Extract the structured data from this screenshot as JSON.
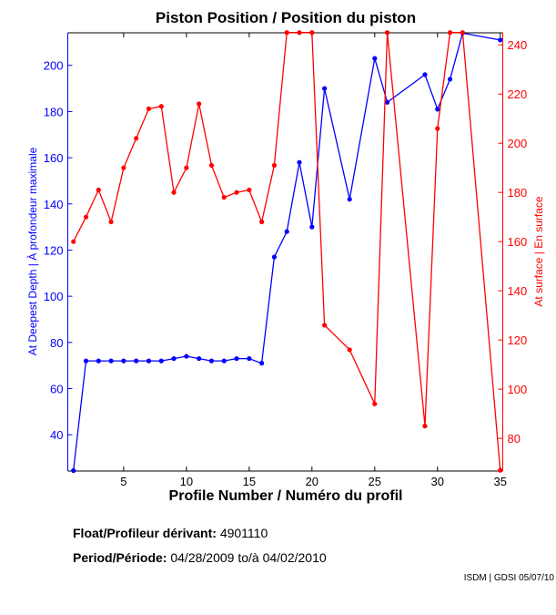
{
  "chart_data": {
    "type": "line",
    "title": "Piston Position / Position du piston",
    "xlabel": "Profile Number / Numéro du profil",
    "ylabel_left": "At Deepest Depth | À profondeur maximale",
    "ylabel_right": "At surface | En surface",
    "xlim": [
      0.55,
      35.2
    ],
    "ylim_left": [
      24.3,
      214.1
    ],
    "ylim_right": [
      66.7,
      244.9
    ],
    "xticks": [
      5,
      10,
      15,
      20,
      25,
      30,
      35
    ],
    "yticks_left": [
      40,
      60,
      80,
      100,
      120,
      140,
      160,
      180,
      200
    ],
    "yticks_right": [
      80,
      100,
      120,
      140,
      160,
      180,
      200,
      220,
      240
    ],
    "grid": false,
    "series": [
      {
        "name": "At Deepest Depth",
        "axis": "left",
        "color": "#0000ff",
        "x": [
          1,
          2,
          3,
          4,
          5,
          6,
          7,
          8,
          9,
          10,
          11,
          12,
          13,
          14,
          15,
          16,
          17,
          18,
          19,
          20,
          21,
          23,
          25,
          26,
          29,
          30,
          31,
          32,
          35
        ],
        "y": [
          24.5,
          72,
          72,
          72,
          72,
          72,
          72,
          72,
          73,
          74,
          73,
          72,
          72,
          73,
          73,
          71,
          117,
          128,
          158,
          130,
          190,
          142,
          203,
          184,
          196,
          181,
          194,
          214,
          211
        ]
      },
      {
        "name": "At surface",
        "axis": "right",
        "color": "#ff0000",
        "x": [
          1,
          2,
          3,
          4,
          5,
          6,
          7,
          8,
          9,
          10,
          11,
          12,
          13,
          14,
          15,
          16,
          17,
          18,
          19,
          20,
          21,
          23,
          25,
          26,
          29,
          30,
          31,
          32,
          35
        ],
        "y": [
          160,
          170,
          181,
          168,
          190,
          202,
          214,
          215,
          180,
          190,
          216,
          191,
          178,
          180,
          181,
          168,
          191,
          245,
          245,
          245,
          126,
          116,
          94,
          245,
          85,
          206,
          245,
          245,
          67
        ]
      }
    ]
  },
  "info": {
    "float_label": "Float/Profileur dérivant:",
    "float_value": "4901110",
    "period_label": "Period/Période:",
    "period_start": "04/28/2009",
    "period_sep": "to/à",
    "period_end": "04/02/2010",
    "credit": "ISDM | GDSI 05/07/10"
  }
}
